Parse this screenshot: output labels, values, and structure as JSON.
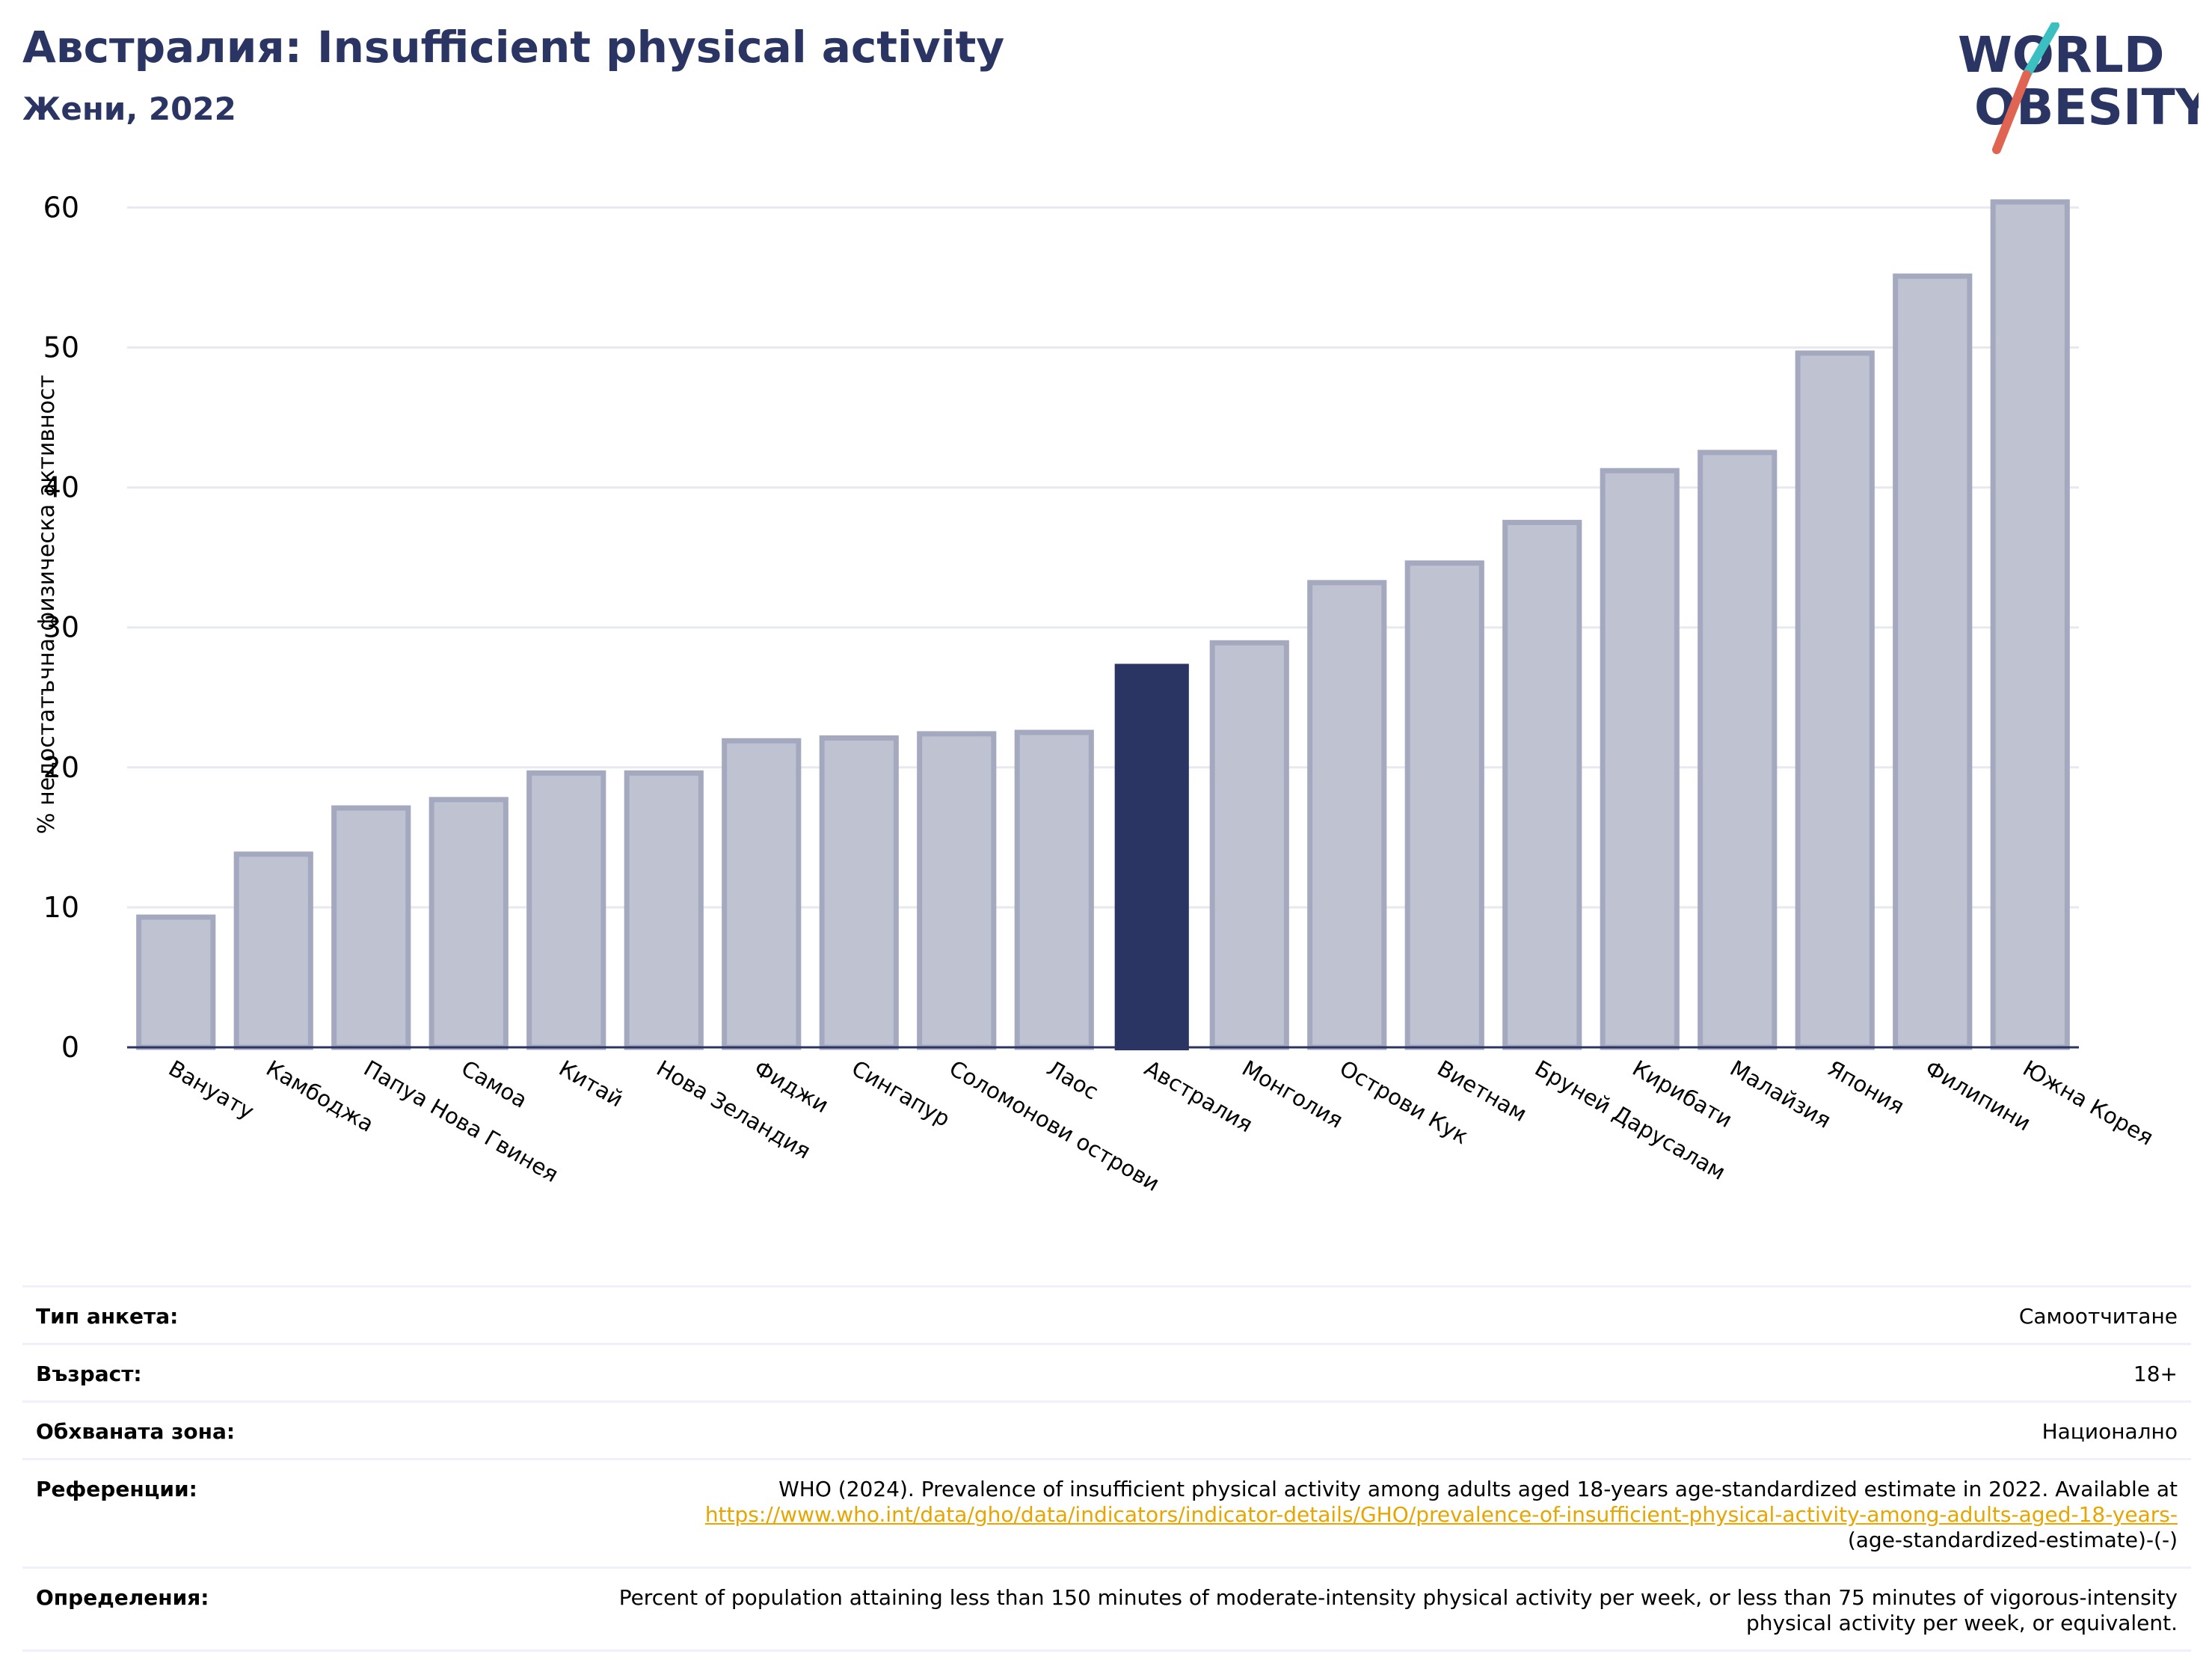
{
  "header": {
    "title": "Австралия: Insufficient physical activity",
    "subtitle": "Жени, 2022"
  },
  "logo": {
    "line1": "WORLD",
    "line2": "OBESITY",
    "colors": {
      "text": "#2b3563",
      "slash_teal": "#3bbfc0",
      "slash_red": "#e06452"
    }
  },
  "colors": {
    "highlight": "#2b3563",
    "bar_fill": "#bfc2d0",
    "bar_stroke": "#a5a9c0",
    "grid": "#e8e9f0",
    "axis": "#2b3563"
  },
  "chart_data": {
    "type": "bar",
    "ylabel": "% недостатъчна физическа активност",
    "xlabel": "",
    "ylim": [
      0,
      62
    ],
    "yticks": [
      0,
      10,
      20,
      30,
      40,
      50,
      60
    ],
    "grid": true,
    "highlight": "Австралия",
    "categories": [
      "Вануату",
      "Камбоджа",
      "Папуа Нова Гвинея",
      "Самоа",
      "Китай",
      "Нова Зеландия",
      "Фиджи",
      "Сингапур",
      "Соломонови острови",
      "Лаос",
      "Австралия",
      "Монголия",
      "Острови Кук",
      "Виетнам",
      "Бруней Дарусалам",
      "Кирибати",
      "Малайзия",
      "Япония",
      "Филипини",
      "Южна Корея"
    ],
    "values": [
      9.3,
      13.8,
      17.1,
      17.7,
      19.6,
      19.6,
      21.9,
      22.1,
      22.4,
      22.5,
      27.4,
      28.9,
      33.2,
      34.6,
      37.5,
      41.2,
      42.5,
      49.6,
      55.1,
      60.4
    ]
  },
  "info": {
    "survey_type_label": "Тип анкета:",
    "survey_type_value": "Самоотчитане",
    "age_label": "Възраст:",
    "age_value": "18+",
    "coverage_label": "Обхваната зона:",
    "coverage_value": "Национално",
    "references_label": "Референции:",
    "references_text": "WHO (2024). Prevalence of insufficient physical activity among adults aged 18-years age-standardized estimate in 2022. Available at",
    "references_link": "https://www.who.int/data/gho/data/indicators/indicator-details/GHO/prevalence-of-insufficient-physical-activity-among-adults-aged-18-years-",
    "references_tail": "(age-standardized-estimate)-(-)",
    "definitions_label": "Определения:",
    "definitions_text": "Percent of population attaining less than 150 minutes of moderate-intensity physical activity per week, or less than 75 minutes of vigorous-intensity physical activity per week, or equivalent."
  }
}
